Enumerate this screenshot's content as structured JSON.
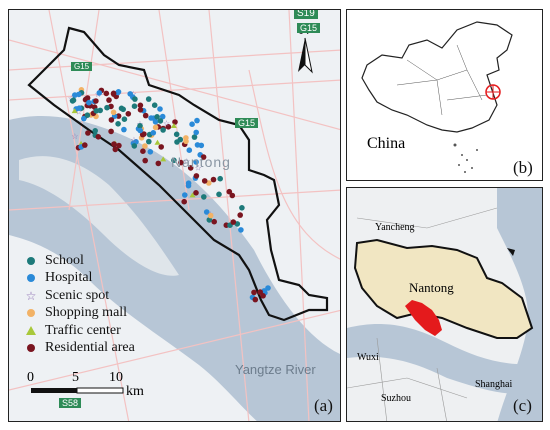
{
  "panels": {
    "a": {
      "tag": "(a)",
      "city_label": "Nantong",
      "river_label": "Yangtze River",
      "north_label": "N",
      "road_shields": [
        "S19",
        "G15",
        "G15",
        "S58",
        "G15"
      ],
      "scale": {
        "ticks": [
          "0",
          "5",
          "10"
        ],
        "unit": "km"
      },
      "legend": [
        {
          "label": "School",
          "symbol": "dot",
          "color": "#1d7a7a"
        },
        {
          "label": "Hospital",
          "symbol": "dot",
          "color": "#2a8ad8"
        },
        {
          "label": "Scenic spot",
          "symbol": "star",
          "color": "#8a6ab0"
        },
        {
          "label": "Shopping mall",
          "symbol": "dot",
          "color": "#f2b266"
        },
        {
          "label": "Traffic center",
          "symbol": "triangle",
          "color": "#a8c83a"
        },
        {
          "label": "Residential  area",
          "symbol": "dot",
          "color": "#7a1520"
        }
      ]
    },
    "b": {
      "tag": "(b)",
      "country_label": "China"
    },
    "c": {
      "tag": "(c)",
      "labels": [
        "Yancheng",
        "Nantong",
        "Wuxi",
        "Suzhou",
        "Shanghai"
      ]
    }
  },
  "colors": {
    "land": "#eef1f4",
    "water": "#b7c6d6",
    "boundary": "#111111",
    "city_fill": "#f1e6c2",
    "highlight": "#e41a1c",
    "shield": "#2e8b57"
  }
}
